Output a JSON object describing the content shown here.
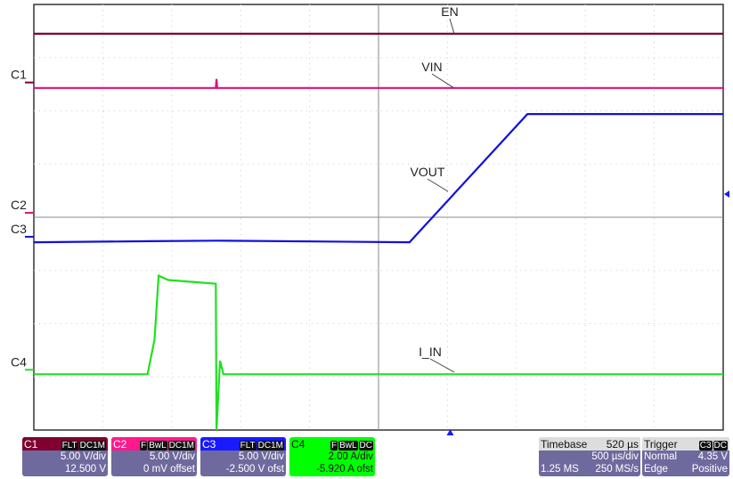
{
  "chart_data": {
    "type": "line",
    "grid": true,
    "x_divisions": 10,
    "y_divisions": 8,
    "units": "divisions",
    "series": [
      {
        "name": "EN",
        "channel": "C1",
        "color": "#800030",
        "points": [
          [
            0,
            3.45
          ],
          [
            10,
            3.45
          ]
        ]
      },
      {
        "name": "VIN",
        "channel": "C2",
        "color": "#e0107a",
        "points": [
          [
            0,
            2.43
          ],
          [
            2.64,
            2.43
          ],
          [
            2.65,
            2.6
          ],
          [
            2.66,
            2.43
          ],
          [
            10,
            2.43
          ]
        ]
      },
      {
        "name": "VOUT",
        "channel": "C3",
        "color": "#1010e0",
        "points": [
          [
            0,
            -0.47
          ],
          [
            1.7,
            -0.45
          ],
          [
            2.65,
            -0.44
          ],
          [
            5.45,
            -0.47
          ],
          [
            7.16,
            1.94
          ],
          [
            10,
            1.94
          ]
        ]
      },
      {
        "name": "I_IN",
        "channel": "C4",
        "color": "#20e020",
        "points": [
          [
            0,
            -2.95
          ],
          [
            1.65,
            -2.95
          ],
          [
            1.75,
            -2.3
          ],
          [
            1.81,
            -1.1
          ],
          [
            1.95,
            -1.18
          ],
          [
            2.64,
            -1.25
          ],
          [
            2.65,
            -4.0
          ],
          [
            2.7,
            -2.7
          ],
          [
            2.75,
            -2.95
          ],
          [
            10,
            -2.95
          ]
        ]
      }
    ],
    "channel_labels": [
      "C1",
      "C2",
      "C3",
      "C4"
    ]
  },
  "channels": [
    {
      "id": "C1",
      "tags": [
        "FLT",
        "DC1M"
      ],
      "scale": "5.00 V/div",
      "offset": "12.500 V",
      "color": "#800030"
    },
    {
      "id": "C2",
      "tags": [
        "F",
        "BwL",
        "DC1M"
      ],
      "scale": "5.00 V/div",
      "offset": "0 mV offset",
      "color": "#ff1a8c"
    },
    {
      "id": "C3",
      "tags": [
        "FLT",
        "DC1M"
      ],
      "scale": "5.00 V/div",
      "offset": "-2.500 V ofst",
      "color": "#1a1aff"
    },
    {
      "id": "C4",
      "tags": [
        "F",
        "BwL",
        "DC"
      ],
      "scale": "2.00 A/div",
      "offset": "-5.920 A ofst",
      "color": "#00ff00"
    }
  ],
  "timebase": {
    "label": "Timebase",
    "delay": "520 µs",
    "scale": "500 µs/div",
    "samples": "1.25 MS",
    "rate": "250 MS/s"
  },
  "trigger": {
    "label": "Trigger",
    "tags": [
      "C3",
      "DC"
    ],
    "mode": "Normal",
    "level": "4.35 V",
    "type": "Edge",
    "slope": "Positive"
  }
}
